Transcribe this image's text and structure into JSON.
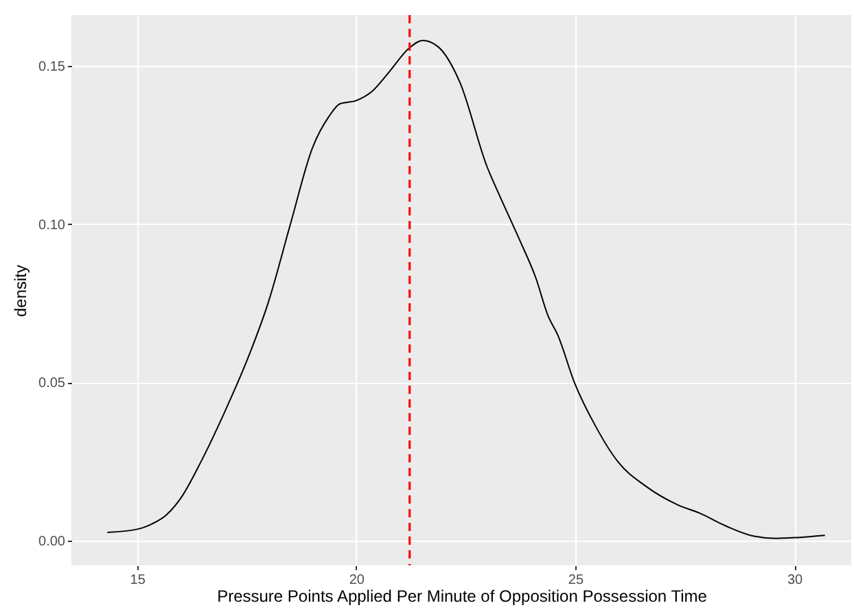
{
  "chart_data": {
    "type": "line",
    "xlabel": "Pressure Points Applied Per Minute of Opposition Possession Time",
    "ylabel": "density",
    "x": [
      14.32,
      15.0,
      15.34,
      15.65,
      16.02,
      16.46,
      17.01,
      17.51,
      18.0,
      18.5,
      19.0,
      19.38,
      19.63,
      20.0,
      20.37,
      20.75,
      21.22,
      21.52,
      21.87,
      22.36,
      22.99,
      23.24,
      23.73,
      24.1,
      24.38,
      24.6,
      24.98,
      25.47,
      25.97,
      26.6,
      27.34,
      27.84,
      28.46,
      29.08,
      29.58,
      30.08,
      30.7
    ],
    "series": [
      {
        "color": "#000000",
        "values": [
          0.0026,
          0.0036,
          0.0053,
          0.0079,
          0.0139,
          0.025,
          0.041,
          0.057,
          0.0755,
          0.1,
          0.124,
          0.134,
          0.138,
          0.139,
          0.142,
          0.148,
          0.1557,
          0.158,
          0.156,
          0.145,
          0.118,
          0.11,
          0.095,
          0.083,
          0.071,
          0.065,
          0.05,
          0.036,
          0.025,
          0.0173,
          0.0113,
          0.0087,
          0.0045,
          0.0014,
          0.0007,
          0.001,
          0.0017
        ]
      }
    ],
    "xlim": [
      13.5,
      31.3
    ],
    "xticks": [
      15,
      20,
      25,
      30
    ],
    "ylim": [
      -0.0078,
      0.166
    ],
    "yticks": [
      {
        "value": 0,
        "label": "0.00"
      },
      {
        "value": 0.05,
        "label": "0.05"
      },
      {
        "value": 0.1,
        "label": "0.10"
      },
      {
        "value": 0.15,
        "label": "0.15"
      }
    ],
    "ref_lines": [
      {
        "axis": "x",
        "value": 21.22,
        "color": "#ff0000",
        "line_style": "dashed"
      }
    ],
    "grid": true,
    "marker": "none",
    "line_style": "solid"
  }
}
